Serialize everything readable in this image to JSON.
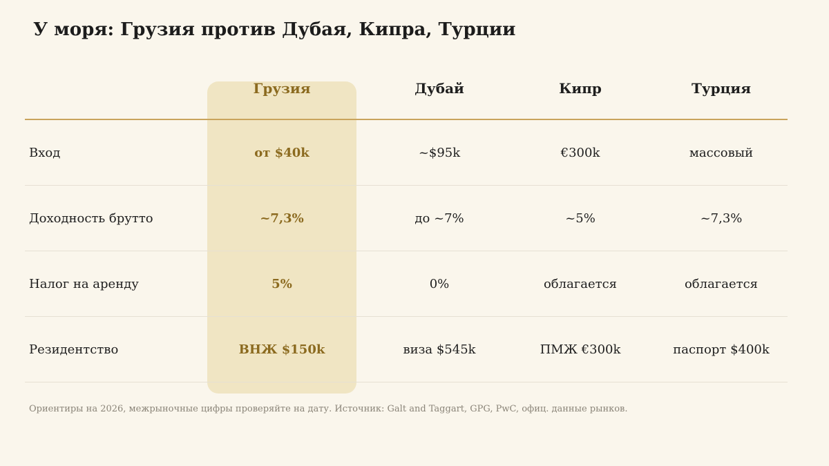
{
  "title": "У моря: Грузия против Дубая, Кипра, Турции",
  "columns": [
    "",
    "Грузия",
    "Дубай",
    "Кипр",
    "Турция"
  ],
  "rows": [
    {
      "label": "Вход",
      "georgia": "от $40k",
      "dubai": "~$95k",
      "cyprus": "€300k",
      "turkey": "массовый"
    },
    {
      "label": "Доходность брутто",
      "georgia": "~7,3%",
      "dubai": "до ~7%",
      "cyprus": "~5%",
      "turkey": "~7,3%"
    },
    {
      "label": "Налог на аренду",
      "georgia": "5%",
      "dubai": "0%",
      "cyprus": "облагается",
      "turkey": "облагается"
    },
    {
      "label": "Резидентство",
      "georgia": "ВНЖ $150k",
      "dubai": "виза $545k",
      "cyprus": "ПМЖ €300k",
      "turkey": "паспорт $400k"
    }
  ],
  "footnote": "Ориентиры на 2026, межрыночные цифры проверяйте на дату. Источник: Galt and Taggart, GPG, PwC, офиц. данные рынков.",
  "colors": {
    "background": "#faf6ec",
    "highlight": "#f0e5c3",
    "accent": "#8b6a1f",
    "header_rule": "#c9a45c"
  }
}
